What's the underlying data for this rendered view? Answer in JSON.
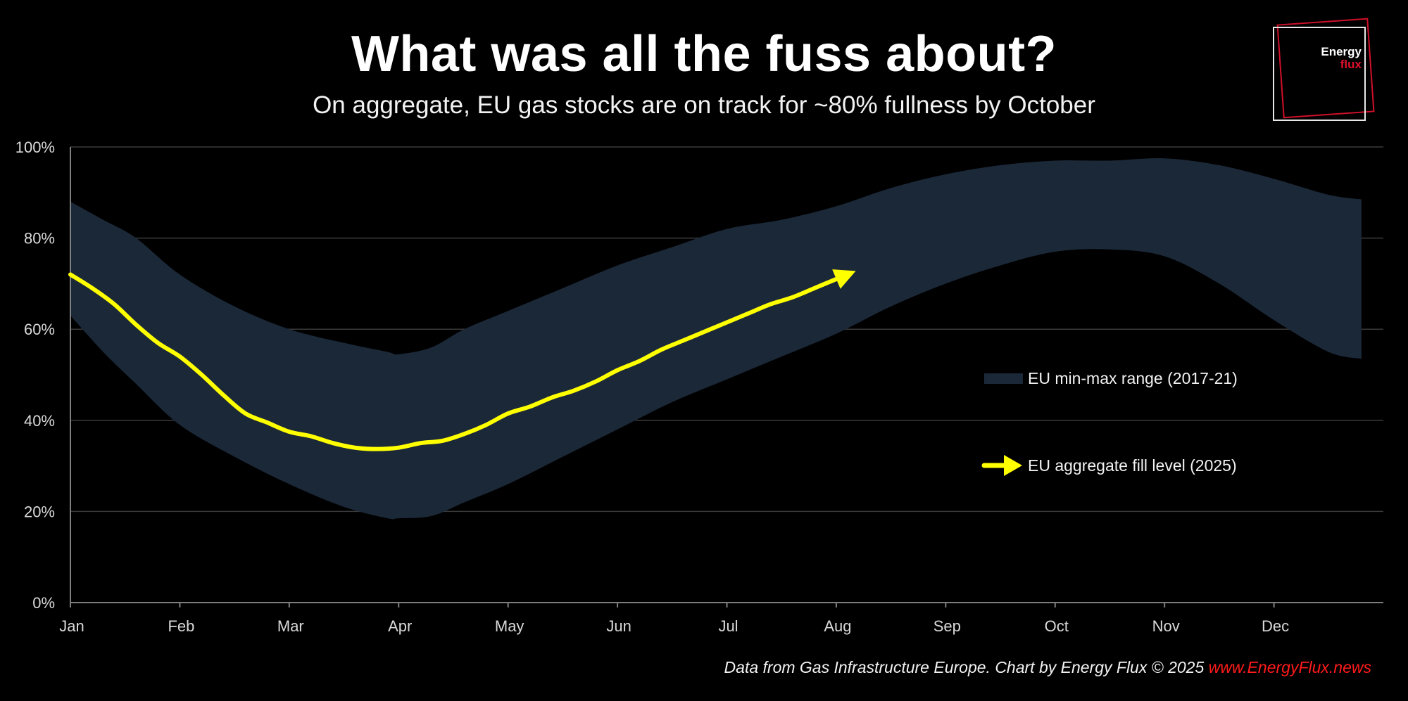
{
  "colors": {
    "band": "#1b2838",
    "line": "#ffff00",
    "grid": "#3a3a3a",
    "url": "#ff1a1a",
    "logo_red": "#e0102a"
  },
  "chart_data": {
    "type": "area",
    "title": "What was all the fuss about?",
    "subtitle": "On aggregate, EU gas stocks are on track for ~80% fullness by October",
    "xlabel": "",
    "ylabel": "",
    "categories": [
      "Jan",
      "Feb",
      "Mar",
      "Apr",
      "May",
      "Jun",
      "Jul",
      "Aug",
      "Sep",
      "Oct",
      "Nov",
      "Dec"
    ],
    "y_tick_labels": [
      "0%",
      "20%",
      "40%",
      "60%",
      "80%",
      "100%"
    ],
    "ylim": [
      0,
      100
    ],
    "xlim": [
      0,
      12
    ],
    "grid": true,
    "legend_position": "right",
    "series": [
      {
        "name": "EU min-max range (2017-21)",
        "kind": "band",
        "x": [
          0,
          0.3,
          0.6,
          1.0,
          1.5,
          2.0,
          2.5,
          2.9,
          3.0,
          3.3,
          3.6,
          4.0,
          4.5,
          5.0,
          5.5,
          6.0,
          6.5,
          7.0,
          7.5,
          8.0,
          8.5,
          9.0,
          9.5,
          10.0,
          10.5,
          11.0,
          11.5,
          11.8
        ],
        "max": [
          88,
          84,
          80,
          72,
          65,
          60,
          57,
          55,
          54.5,
          56,
          60,
          64,
          69,
          74,
          78,
          82,
          84,
          87,
          91,
          94,
          96,
          97,
          97,
          97.5,
          96,
          93,
          89.5,
          88.5
        ],
        "min": [
          63,
          55,
          48,
          39,
          32,
          26,
          21,
          18.5,
          18.5,
          19,
          22,
          26,
          32,
          38,
          44,
          49,
          54,
          59,
          65,
          70,
          74,
          77,
          77.5,
          76,
          70,
          62,
          55,
          53.5
        ]
      },
      {
        "name": "EU aggregate fill level (2025)",
        "kind": "line",
        "x": [
          0,
          0.2,
          0.4,
          0.6,
          0.8,
          1.0,
          1.2,
          1.4,
          1.6,
          1.8,
          2.0,
          2.2,
          2.4,
          2.6,
          2.8,
          3.0,
          3.2,
          3.4,
          3.6,
          3.8,
          4.0,
          4.2,
          4.4,
          4.6,
          4.8,
          5.0,
          5.2,
          5.4,
          5.6,
          5.8,
          6.0,
          6.2,
          6.4,
          6.6,
          6.8,
          7.0
        ],
        "values": [
          72,
          69,
          65.5,
          61,
          57,
          54,
          50,
          45.5,
          41.5,
          39.5,
          37.5,
          36.5,
          35,
          34,
          33.7,
          34,
          35,
          35.5,
          37,
          39,
          41.5,
          43,
          45,
          46.5,
          48.5,
          51,
          53,
          55.5,
          57.5,
          59.5,
          61.5,
          63.5,
          65.5,
          67,
          69,
          71
        ]
      }
    ]
  },
  "legend": {
    "band_label": "EU min-max range (2017-21)",
    "line_label": "EU aggregate fill level (2025)"
  },
  "logo": {
    "line1": "Energy",
    "line2": "flux"
  },
  "footer": {
    "text": "Data from Gas Infrastructure Europe. Chart by Energy Flux © 2025 ",
    "url": "www.EnergyFlux.news"
  }
}
